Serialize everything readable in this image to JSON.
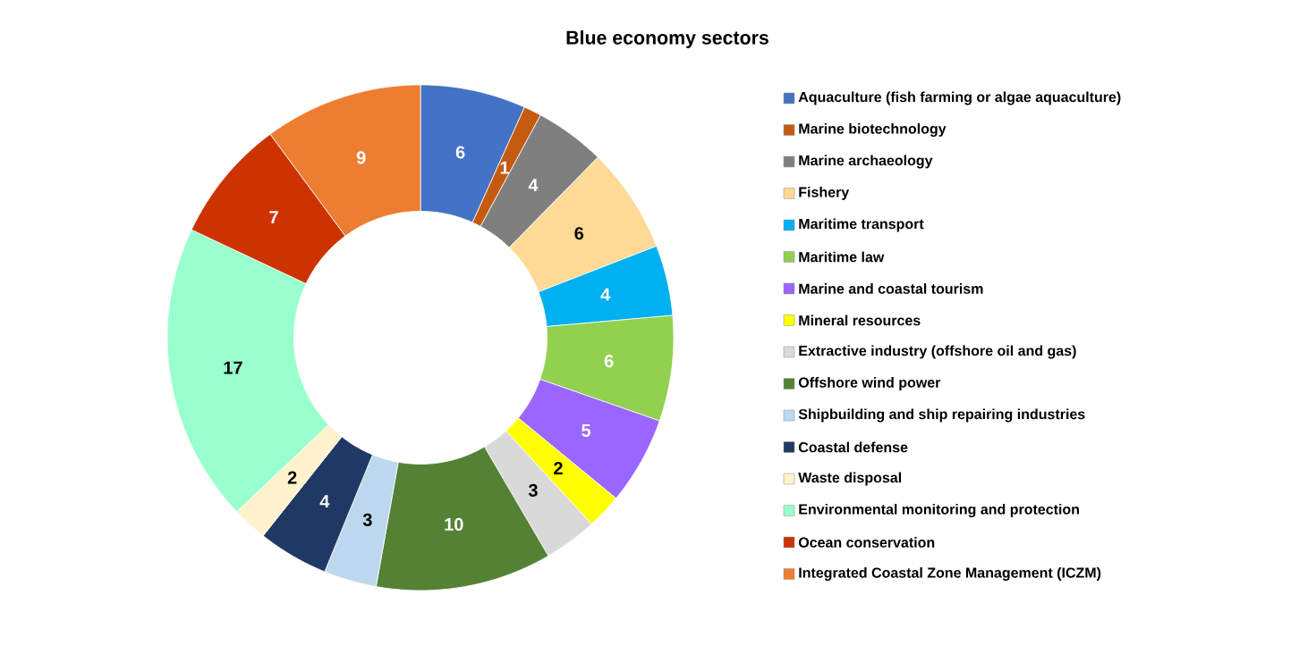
{
  "chart_data": {
    "type": "donut",
    "title": "Blue economy sectors",
    "categories": [
      "Aquaculture (fish farming or algae aquaculture)",
      "Marine biotechnology",
      "Marine archaeology",
      "Fishery",
      "Maritime transport",
      "Maritime law",
      "Marine and coastal tourism",
      "Mineral resources",
      "Extractive industry (offshore oil and gas)",
      "Offshore wind power",
      "Shipbuilding and ship repairing industries",
      "Coastal defense",
      "Waste disposal",
      "Environmental monitoring and protection",
      "Ocean conservation",
      "Integrated Coastal Zone Management (ICZM)"
    ],
    "values": [
      6,
      1,
      4,
      6,
      4,
      6,
      5,
      2,
      3,
      10,
      3,
      4,
      2,
      17,
      7,
      9
    ],
    "colors": [
      "#4472c4",
      "#c55a11",
      "#7f7f7f",
      "#ffd996",
      "#00b0f0",
      "#92d050",
      "#9966ff",
      "#ffff00",
      "#d9d9d9",
      "#548235",
      "#bdd7ee",
      "#203864",
      "#fff2cc",
      "#99ffcc",
      "#cc3300",
      "#ed7d31"
    ],
    "data_labels": true,
    "legend": "right"
  }
}
